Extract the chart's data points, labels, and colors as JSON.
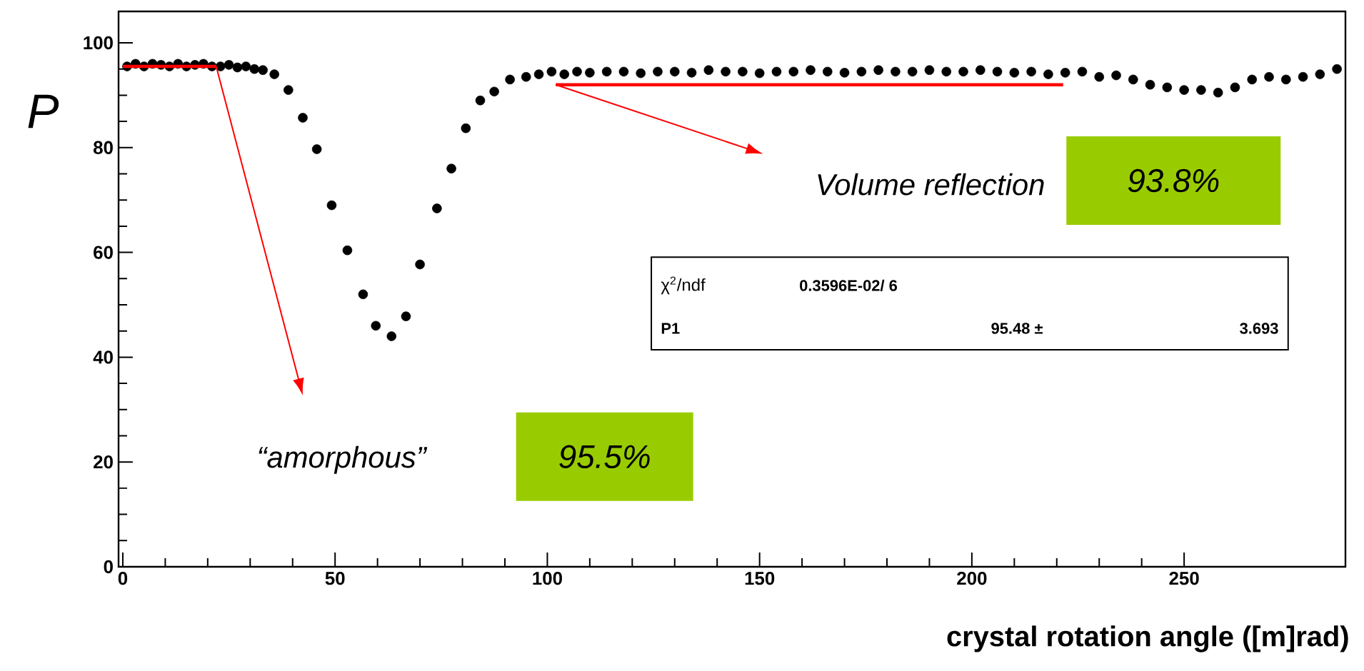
{
  "chart_data": {
    "type": "scatter",
    "xlabel": "crystal rotation angle ([m]rad)",
    "ylabel": "P",
    "xlim": [
      -1,
      288
    ],
    "ylim": [
      0,
      106
    ],
    "xticks": [
      0,
      50,
      100,
      150,
      200,
      250
    ],
    "yticks": [
      0,
      20,
      40,
      60,
      80,
      100
    ],
    "series": [
      {
        "marker": "circle",
        "color": "#000000",
        "x": [
          1,
          3,
          5,
          7,
          9,
          11,
          13,
          15,
          17,
          19,
          21,
          23,
          25,
          27,
          29,
          31,
          33,
          35.7,
          39,
          42.4,
          45.7,
          49.2,
          52.9,
          56.6,
          59.6,
          63.3,
          66.7,
          70,
          74,
          77.4,
          80.8,
          84.2,
          87.5,
          91.2,
          95,
          98,
          101,
          104,
          107,
          110,
          114,
          118,
          122,
          126,
          130,
          134,
          138,
          142,
          146,
          150,
          154,
          158,
          162,
          166,
          170,
          174,
          178,
          182,
          186,
          190,
          194,
          198,
          202,
          206,
          210,
          214,
          218,
          222,
          226,
          230,
          234,
          238,
          242,
          246,
          250,
          254,
          258,
          262,
          266,
          270,
          274,
          278,
          282,
          286
        ],
        "values": [
          95.5,
          96,
          95.5,
          96,
          95.8,
          95.5,
          96,
          95.5,
          95.8,
          96,
          95.5,
          95.5,
          95.8,
          95.3,
          95.5,
          95,
          94.8,
          94,
          91,
          85.7,
          79.7,
          69,
          60.4,
          52,
          46,
          44,
          47.8,
          57.7,
          68.4,
          76,
          83.7,
          89,
          90.7,
          93,
          93.5,
          94,
          94.5,
          94,
          94.5,
          94.3,
          94.5,
          94.5,
          94.2,
          94.5,
          94.5,
          94.3,
          94.8,
          94.5,
          94.5,
          94.2,
          94.5,
          94.5,
          94.8,
          94.5,
          94.3,
          94.5,
          94.8,
          94.5,
          94.5,
          94.8,
          94.5,
          94.5,
          94.8,
          94.5,
          94.3,
          94.5,
          94,
          94.3,
          94.5,
          93.5,
          93.8,
          93,
          92,
          91.5,
          91,
          91,
          90.5,
          91.5,
          93,
          93.5,
          93,
          93.5,
          94,
          95
        ]
      },
      {
        "type": "line",
        "marker": "none",
        "color": "#ff0000",
        "x": [
          0,
          22
        ],
        "values": [
          95.5,
          95.5
        ]
      },
      {
        "type": "line",
        "marker": "none",
        "color": "#ff0000",
        "x": [
          102,
          221.5
        ],
        "values": [
          92,
          92
        ]
      }
    ],
    "annotations": [
      "Volume reflection",
      "93.8%",
      "“amorphous”",
      "95.5%",
      "χ$^{2}$/ndf",
      "0.3596E-02/   6",
      "P1",
      "95.48 ±",
      "3.693"
    ]
  }
}
